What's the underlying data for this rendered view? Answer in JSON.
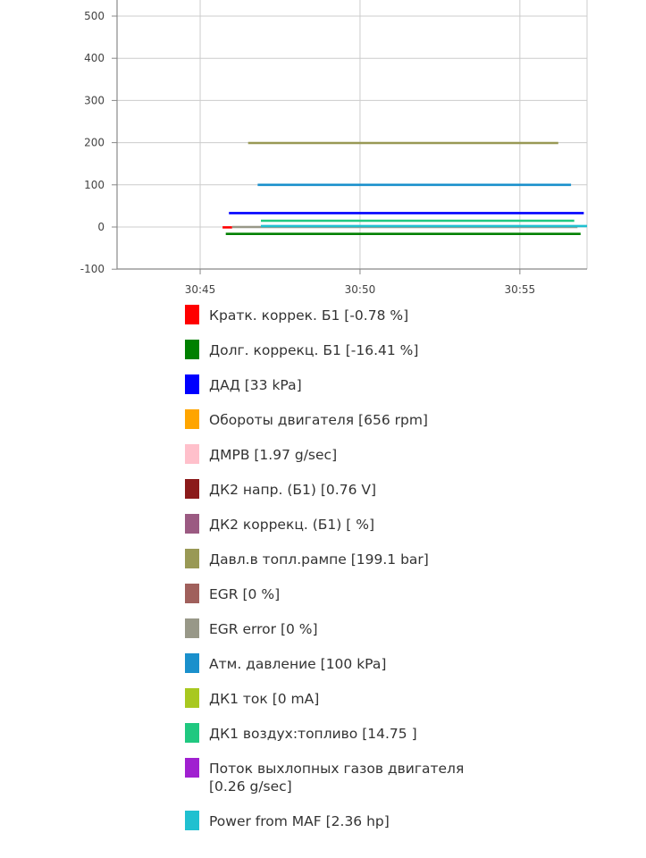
{
  "chart_data": {
    "type": "line",
    "xlabel": "",
    "ylabel": "",
    "ylim": [
      -100,
      500
    ],
    "yticks": [
      500,
      400,
      300,
      200,
      100,
      0,
      -100
    ],
    "xticks": [
      "30:45",
      "30:50",
      "30:55"
    ],
    "xtick_minutes": [
      45,
      50,
      55
    ],
    "xlim_minutes": [
      42.4,
      57.1
    ],
    "grid": true,
    "legend_position": "bottom",
    "series": [
      {
        "name": "Кратк. коррек. Б1 [-0.78 %]",
        "color": "#FF0000",
        "x": [
          45.7,
          46.0
        ],
        "y": [
          -0.78,
          -0.78
        ]
      },
      {
        "name": "Долг. коррекц. Б1 [-16.41 %]",
        "color": "#008000",
        "x": [
          45.8,
          56.9
        ],
        "y": [
          -16.41,
          -16.41
        ]
      },
      {
        "name": "ДАД [33 kPa]",
        "color": "#0000FF",
        "x": [
          45.9,
          57.0
        ],
        "y": [
          33,
          33
        ]
      },
      {
        "name": "Обороты двигателя [656 rpm]",
        "color": "#FFA500",
        "x": [],
        "y": []
      },
      {
        "name": "ДМРВ [1.97 g/sec]",
        "color": "#FFC0CB",
        "x": [],
        "y": []
      },
      {
        "name": "ДК2 напр. (Б1) [0.76 V]",
        "color": "#8B1A1A",
        "x": [],
        "y": []
      },
      {
        "name": "ДК2 коррекц. (Б1) [ %]",
        "color": "#9B5A82",
        "x": [],
        "y": []
      },
      {
        "name": "Давл.в топл.рампе [199.1 bar]",
        "color": "#999955",
        "x": [
          46.5,
          56.2
        ],
        "y": [
          199.1,
          199.1
        ]
      },
      {
        "name": "EGR [0 %]",
        "color": "#A0605C",
        "x": [],
        "y": []
      },
      {
        "name": "EGR error [0 %]",
        "color": "#989888",
        "x": [
          46.0,
          56.8
        ],
        "y": [
          0,
          0
        ]
      },
      {
        "name": "Атм. давление [100 kPa]",
        "color": "#1A90CC",
        "x": [
          46.8,
          56.6
        ],
        "y": [
          100,
          100
        ]
      },
      {
        "name": "ДК1 ток [0 mA]",
        "color": "#A8C820",
        "x": [],
        "y": []
      },
      {
        "name": "ДК1 воздух:топливо [14.75 ]",
        "color": "#20C880",
        "x": [
          46.9,
          56.7
        ],
        "y": [
          14.75,
          14.75
        ]
      },
      {
        "name": "Поток выхлопных газов двигателя [0.26 g/sec]",
        "color": "#A020D0",
        "x": [],
        "y": []
      },
      {
        "name": "Power from MAF [2.36 hp]",
        "color": "#20C0D0",
        "x": [
          46.9,
          57.1
        ],
        "y": [
          2.36,
          2.36
        ]
      }
    ]
  }
}
